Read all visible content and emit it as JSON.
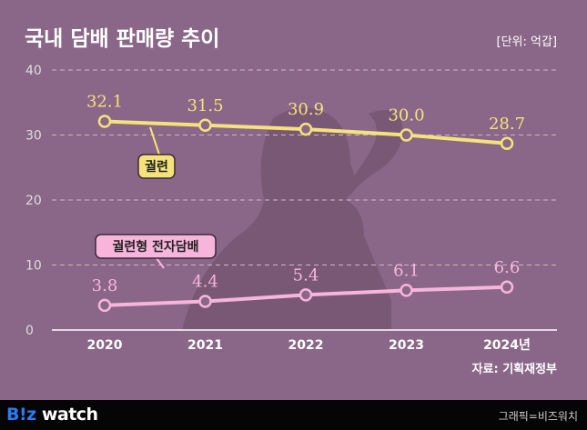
{
  "chart_data": {
    "type": "line",
    "title": "국내 담배 판매량 추이",
    "unit": "[단위: 억갑]",
    "categories": [
      "2020",
      "2021",
      "2022",
      "2023",
      "2024년"
    ],
    "ylim": [
      0,
      40
    ],
    "yticks": [
      0,
      10,
      20,
      30,
      40
    ],
    "grid": true,
    "series": [
      {
        "name": "궐련",
        "values": [
          32.1,
          31.5,
          30.9,
          30.0,
          28.7
        ],
        "color": "#f5e27a"
      },
      {
        "name": "궐련형 전자담배",
        "values": [
          3.8,
          4.4,
          5.4,
          6.1,
          6.6
        ],
        "color": "#f7b5dc"
      }
    ],
    "source": "자료: 기획재정부"
  },
  "footer": {
    "logo_prefix": "B",
    "logo_mark": "!z",
    "logo_word": " watch",
    "credit": "그래픽=비즈워치"
  },
  "colors": {
    "background": "#8a6788",
    "footer": "#050505"
  }
}
